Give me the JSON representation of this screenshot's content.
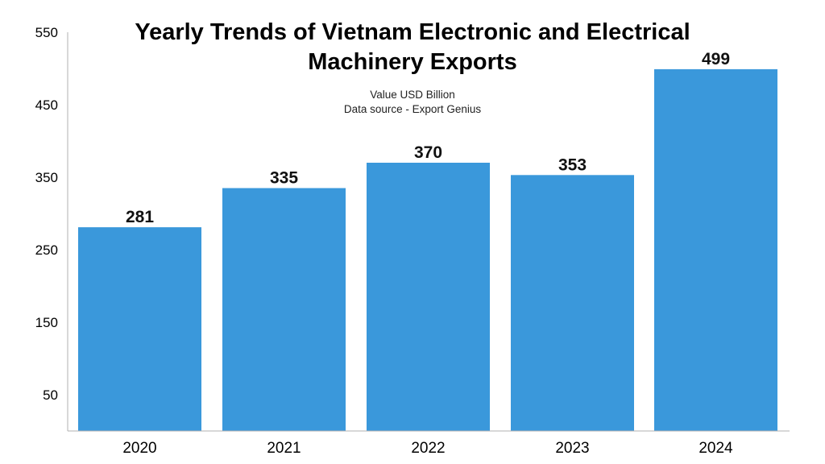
{
  "chart_data": {
    "type": "bar",
    "title_lines": [
      "Yearly Trends of Vietnam Electronic and Electrical",
      "Machinery Exports"
    ],
    "subtitle_lines": [
      "Value USD Billion",
      "Data source - Export Genius"
    ],
    "categories": [
      "2020",
      "2021",
      "2022",
      "2023",
      "2024"
    ],
    "values": [
      281,
      335,
      370,
      353,
      499
    ],
    "data_labels": [
      "281",
      "335",
      "370",
      "353",
      "499"
    ],
    "y_ticks": [
      50,
      150,
      250,
      350,
      450,
      550
    ],
    "ylim": [
      0,
      550
    ],
    "grid": false,
    "legend": "none",
    "bar_color": "#3a98db",
    "axis_color": "#b0b0b0"
  }
}
